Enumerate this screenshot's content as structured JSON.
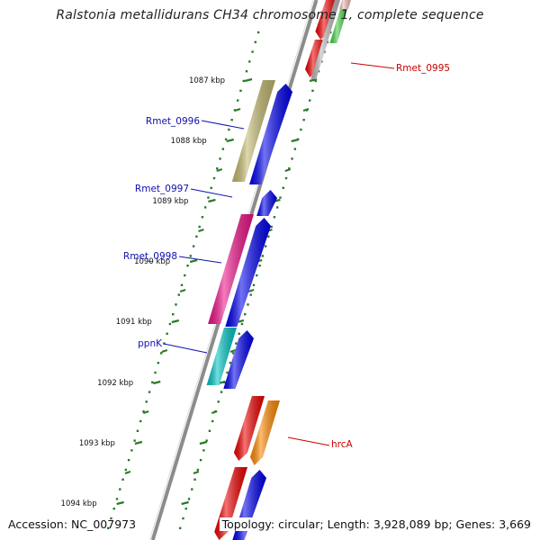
{
  "title": "Ralstonia metallidurans CH34 chromosome 1, complete sequence",
  "footer": {
    "accession": "Accession: NC_007973",
    "topology": "Topology: circular; Length: 3,928,089 bp; Genes: 3,669"
  },
  "ticks": [
    "1087 kbp",
    "1088 kbp",
    "1089 kbp",
    "1090 kbp",
    "1091 kbp",
    "1092 kbp",
    "1093 kbp",
    "1094 kbp"
  ],
  "colors": {
    "backbone": "#8c8c8c",
    "tick": "#2a7a2a",
    "label_blue": "#1010b0",
    "label_red": "#cc0000",
    "gene_blue": "#0000ee",
    "gene_red": "#ee0000",
    "gene_olive": "#c2b86e",
    "gene_pink": "#ee1188",
    "gene_cyan": "#00c4c4",
    "gene_orange": "#ff8800",
    "gene_green": "#44cc44",
    "gene_gray": "#b8b8b8"
  },
  "gene_labels": [
    {
      "name": "Rmet_0995",
      "color": "red"
    },
    {
      "name": "Rmet_0996",
      "color": "blue"
    },
    {
      "name": "Rmet_0997",
      "color": "blue"
    },
    {
      "name": "Rmet_0998",
      "color": "blue"
    },
    {
      "name": "ppnK",
      "color": "blue"
    },
    {
      "name": "hrcA",
      "color": "red"
    }
  ]
}
